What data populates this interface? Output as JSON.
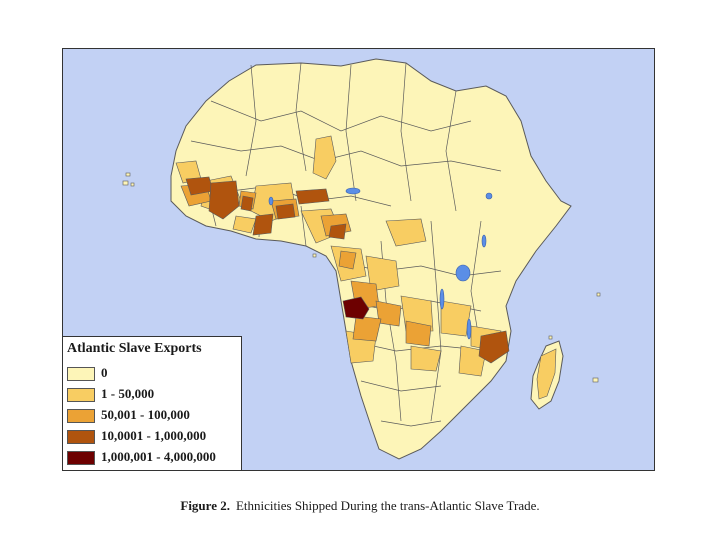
{
  "legend": {
    "title": "Atlantic Slave Exports",
    "items": [
      {
        "label": "0",
        "color": "#fdf5b8"
      },
      {
        "label": "1 - 50,000",
        "color": "#f8cd62"
      },
      {
        "label": "50,001 - 100,000",
        "color": "#eba235"
      },
      {
        "label": "10,0001 - 1,000,000",
        "color": "#b0540e"
      },
      {
        "label": "1,000,001 - 4,000,000",
        "color": "#6d0000"
      }
    ]
  },
  "caption": {
    "label": "Figure 2.",
    "text": "Ethnicities Shipped During the trans-Atlantic Slave Trade."
  },
  "colors": {
    "ocean": "#c2d1f4",
    "lake": "#5b8ee6",
    "border": "#5a5a5a"
  }
}
